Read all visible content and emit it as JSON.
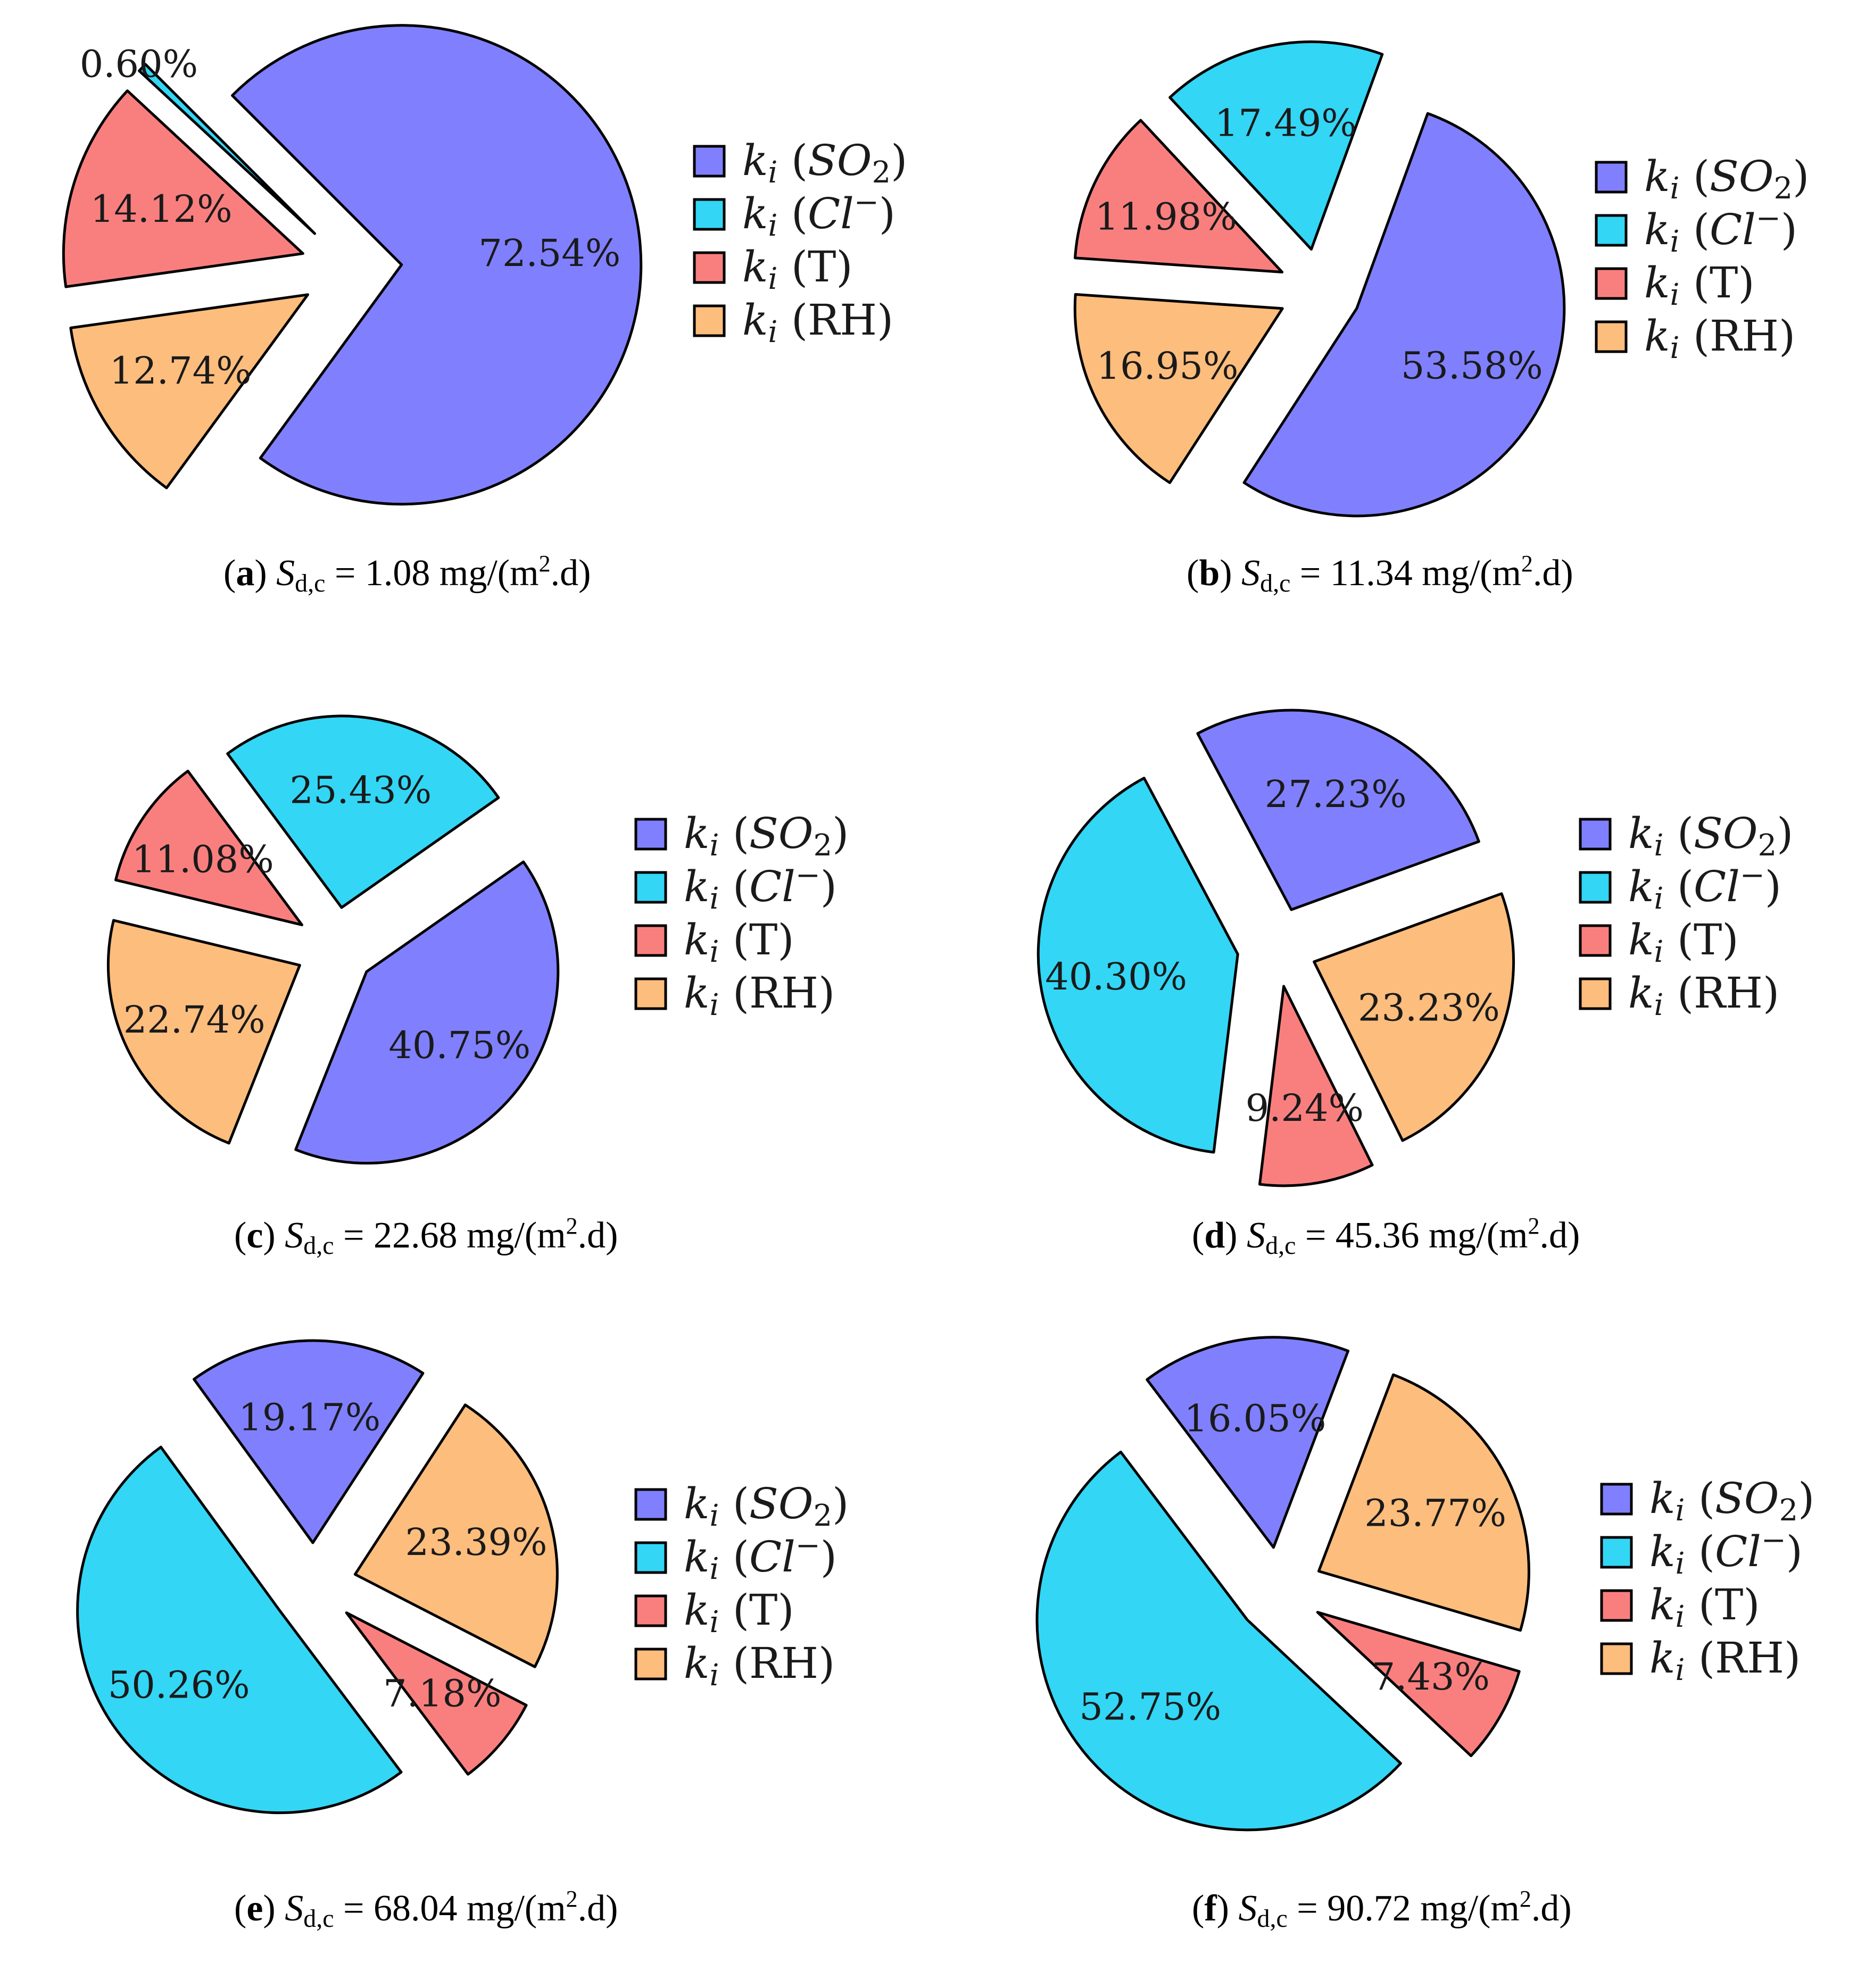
{
  "colors": {
    "SO2": "#8080ff",
    "Cl": "#33d6f5",
    "T": "#f97f7f",
    "RH": "#fcbd7d",
    "edge": "#000000"
  },
  "chart_data": [
    {
      "type": "pie",
      "panel": "a",
      "caption": {
        "letter": "a",
        "symbol": "S",
        "subscript": "d,c",
        "equals": "=",
        "value": "1.08",
        "unit_pre": "mg/(m",
        "unit_sup": "2",
        "unit_post": ".d)"
      },
      "slices": [
        {
          "key": "SO2",
          "value": 72.54,
          "label": "72.54%"
        },
        {
          "key": "Cl",
          "value": 0.6,
          "label": "0.60%"
        },
        {
          "key": "T",
          "value": 14.12,
          "label": "14.12%"
        },
        {
          "key": "RH",
          "value": 12.74,
          "label": "12.74%"
        }
      ],
      "legend": [
        {
          "key": "SO2",
          "ki": "k",
          "sub": "i",
          "open": "(",
          "name": "SO",
          "name_sub": "2",
          "name_sup": "",
          "close": ")"
        },
        {
          "key": "Cl",
          "ki": "k",
          "sub": "i",
          "open": "(",
          "name": "Cl",
          "name_sub": "",
          "name_sup": "−",
          "close": ")"
        },
        {
          "key": "T",
          "ki": "k",
          "sub": "i",
          "open": "(",
          "name": "T",
          "name_sub": "",
          "name_sup": "",
          "close": ")"
        },
        {
          "key": "RH",
          "ki": "k",
          "sub": "i",
          "open": "(",
          "name": "RH",
          "name_sub": "",
          "name_sup": "",
          "close": ")"
        }
      ]
    },
    {
      "type": "pie",
      "panel": "b",
      "caption": {
        "letter": "b",
        "symbol": "S",
        "subscript": "d,c",
        "equals": "=",
        "value": "11.34",
        "unit_pre": "mg/(m",
        "unit_sup": "2",
        "unit_post": ".d)"
      },
      "slices": [
        {
          "key": "SO2",
          "value": 53.58,
          "label": "53.58%"
        },
        {
          "key": "Cl",
          "value": 17.49,
          "label": "17.49%"
        },
        {
          "key": "T",
          "value": 11.98,
          "label": "11.98%"
        },
        {
          "key": "RH",
          "value": 16.95,
          "label": "16.95%"
        }
      ],
      "legend": [
        {
          "key": "SO2",
          "ki": "k",
          "sub": "i",
          "open": "(",
          "name": "SO",
          "name_sub": "2",
          "name_sup": "",
          "close": ")"
        },
        {
          "key": "Cl",
          "ki": "k",
          "sub": "i",
          "open": "(",
          "name": "Cl",
          "name_sub": "",
          "name_sup": "−",
          "close": ")"
        },
        {
          "key": "T",
          "ki": "k",
          "sub": "i",
          "open": "(",
          "name": "T",
          "name_sub": "",
          "name_sup": "",
          "close": ")"
        },
        {
          "key": "RH",
          "ki": "k",
          "sub": "i",
          "open": "(",
          "name": "RH",
          "name_sub": "",
          "name_sup": "",
          "close": ")"
        }
      ]
    },
    {
      "type": "pie",
      "panel": "c",
      "caption": {
        "letter": "c",
        "symbol": "S",
        "subscript": "d,c",
        "equals": "=",
        "value": "22.68",
        "unit_pre": "mg/(m",
        "unit_sup": "2",
        "unit_post": ".d)"
      },
      "slices": [
        {
          "key": "SO2",
          "value": 40.75,
          "label": "40.75%"
        },
        {
          "key": "Cl",
          "value": 25.43,
          "label": "25.43%"
        },
        {
          "key": "T",
          "value": 11.08,
          "label": "11.08%"
        },
        {
          "key": "RH",
          "value": 22.74,
          "label": "22.74%"
        }
      ],
      "legend": [
        {
          "key": "SO2",
          "ki": "k",
          "sub": "i",
          "open": "(",
          "name": "SO",
          "name_sub": "2",
          "name_sup": "",
          "close": ")"
        },
        {
          "key": "Cl",
          "ki": "k",
          "sub": "i",
          "open": "(",
          "name": "Cl",
          "name_sub": "",
          "name_sup": "−",
          "close": ")"
        },
        {
          "key": "T",
          "ki": "k",
          "sub": "i",
          "open": "(",
          "name": "T",
          "name_sub": "",
          "name_sup": "",
          "close": ")"
        },
        {
          "key": "RH",
          "ki": "k",
          "sub": "i",
          "open": "(",
          "name": "RH",
          "name_sub": "",
          "name_sup": "",
          "close": ")"
        }
      ]
    },
    {
      "type": "pie",
      "panel": "d",
      "caption": {
        "letter": "d",
        "symbol": "S",
        "subscript": "d,c",
        "equals": "=",
        "value": "45.36",
        "unit_pre": "mg/(m",
        "unit_sup": "2",
        "unit_post": ".d)"
      },
      "slices": [
        {
          "key": "SO2",
          "value": 27.23,
          "label": "27.23%"
        },
        {
          "key": "Cl",
          "value": 40.3,
          "label": "40.30%"
        },
        {
          "key": "T",
          "value": 9.24,
          "label": "9.24%"
        },
        {
          "key": "RH",
          "value": 23.23,
          "label": "23.23%"
        }
      ],
      "legend": [
        {
          "key": "SO2",
          "ki": "k",
          "sub": "i",
          "open": "(",
          "name": "SO",
          "name_sub": "2",
          "name_sup": "",
          "close": ")"
        },
        {
          "key": "Cl",
          "ki": "k",
          "sub": "i",
          "open": "(",
          "name": "Cl",
          "name_sub": "",
          "name_sup": "−",
          "close": ")"
        },
        {
          "key": "T",
          "ki": "k",
          "sub": "i",
          "open": "(",
          "name": "T",
          "name_sub": "",
          "name_sup": "",
          "close": ")"
        },
        {
          "key": "RH",
          "ki": "k",
          "sub": "i",
          "open": "(",
          "name": "RH",
          "name_sub": "",
          "name_sup": "",
          "close": ")"
        }
      ]
    },
    {
      "type": "pie",
      "panel": "e",
      "caption": {
        "letter": "e",
        "symbol": "S",
        "subscript": "d,c",
        "equals": "=",
        "value": "68.04",
        "unit_pre": "mg/(m",
        "unit_sup": "2",
        "unit_post": ".d)"
      },
      "slices": [
        {
          "key": "SO2",
          "value": 19.17,
          "label": "19.17%"
        },
        {
          "key": "Cl",
          "value": 50.26,
          "label": "50.26%"
        },
        {
          "key": "T",
          "value": 7.18,
          "label": "7.18%"
        },
        {
          "key": "RH",
          "value": 23.39,
          "label": "23.39%"
        }
      ],
      "legend": [
        {
          "key": "SO2",
          "ki": "k",
          "sub": "i",
          "open": "(",
          "name": "SO",
          "name_sub": "2",
          "name_sup": "",
          "close": ")"
        },
        {
          "key": "Cl",
          "ki": "k",
          "sub": "i",
          "open": "(",
          "name": "Cl",
          "name_sub": "",
          "name_sup": "−",
          "close": ")"
        },
        {
          "key": "T",
          "ki": "k",
          "sub": "i",
          "open": "(",
          "name": "T",
          "name_sub": "",
          "name_sup": "",
          "close": ")"
        },
        {
          "key": "RH",
          "ki": "k",
          "sub": "i",
          "open": "(",
          "name": "RH",
          "name_sub": "",
          "name_sup": "",
          "close": ")"
        }
      ]
    },
    {
      "type": "pie",
      "panel": "f",
      "caption": {
        "letter": "f",
        "symbol": "S",
        "subscript": "d,c",
        "equals": "=",
        "value": "90.72",
        "unit_pre": "mg/(m",
        "unit_sup": "2",
        "unit_post": ".d)"
      },
      "slices": [
        {
          "key": "SO2",
          "value": 16.05,
          "label": "16.05%"
        },
        {
          "key": "Cl",
          "value": 52.75,
          "label": "52.75%"
        },
        {
          "key": "T",
          "value": 7.43,
          "label": "7.43%"
        },
        {
          "key": "RH",
          "value": 23.77,
          "label": "23.77%"
        }
      ],
      "legend": [
        {
          "key": "SO2",
          "ki": "k",
          "sub": "i",
          "open": "(",
          "name": "SO",
          "name_sub": "2",
          "name_sup": "",
          "close": ")"
        },
        {
          "key": "Cl",
          "ki": "k",
          "sub": "i",
          "open": "(",
          "name": "Cl",
          "name_sub": "",
          "name_sup": "−",
          "close": ")"
        },
        {
          "key": "T",
          "ki": "k",
          "sub": "i",
          "open": "(",
          "name": "T",
          "name_sub": "",
          "name_sup": "",
          "close": ")"
        },
        {
          "key": "RH",
          "ki": "k",
          "sub": "i",
          "open": "(",
          "name": "RH",
          "name_sub": "",
          "name_sup": "",
          "close": ")"
        }
      ]
    }
  ]
}
